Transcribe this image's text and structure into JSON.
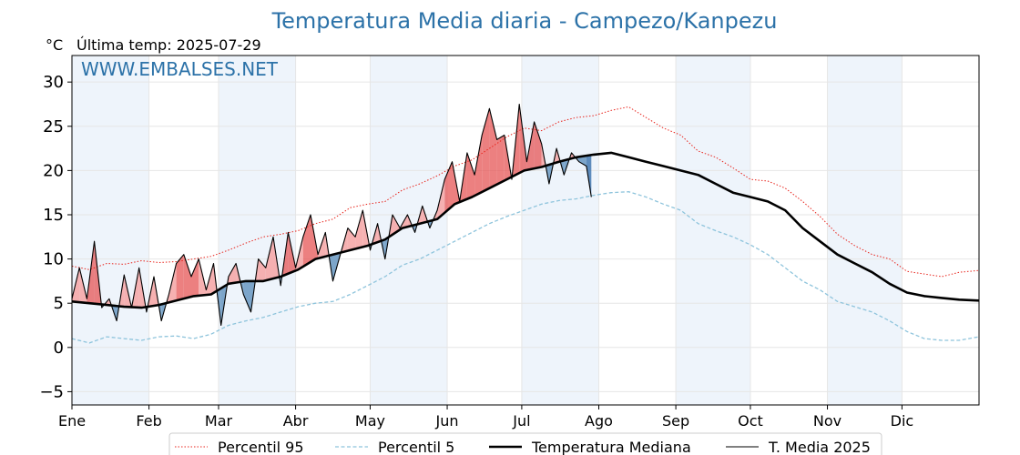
{
  "chart_data": {
    "type": "line",
    "title": "Temperatura Media diaria - Campezo/Kanpezu",
    "unit_label": "°C",
    "last_temp_label": "Última temp: 2025-07-29",
    "watermark": "WWW.EMBALSES.NET",
    "ylim": [
      -6.5,
      33
    ],
    "yticks": [
      -5,
      0,
      5,
      10,
      15,
      20,
      25,
      30
    ],
    "xlim": [
      1,
      366
    ],
    "months": [
      {
        "label": "Ene",
        "day": 1
      },
      {
        "label": "Feb",
        "day": 32
      },
      {
        "label": "Mar",
        "day": 60
      },
      {
        "label": "Abr",
        "day": 91
      },
      {
        "label": "May",
        "day": 121
      },
      {
        "label": "Jun",
        "day": 152
      },
      {
        "label": "Jul",
        "day": 182
      },
      {
        "label": "Ago",
        "day": 213
      },
      {
        "label": "Sep",
        "day": 244
      },
      {
        "label": "Oct",
        "day": 274
      },
      {
        "label": "Nov",
        "day": 305
      },
      {
        "label": "Dic",
        "day": 335
      }
    ],
    "shaded_month_bands": [
      [
        1,
        32
      ],
      [
        60,
        91
      ],
      [
        121,
        152
      ],
      [
        182,
        213
      ],
      [
        244,
        274
      ],
      [
        305,
        335
      ]
    ],
    "grid": true,
    "legend_position": "bottom",
    "colors": {
      "p95": "#e8251d",
      "p5": "#8ec4dc",
      "median": "#000000",
      "current": "#000000",
      "above_fill": "#f5a8a8",
      "above_fill_strong": "#e65555",
      "below_fill": "#6f9cc4",
      "below_fill_strong": "#2e6aa8",
      "band": "#eef4fb",
      "title": "#2c72a8"
    },
    "series": [
      {
        "name": "Percentil 95",
        "style": "dotted-red",
        "x": [
          1,
          8,
          15,
          22,
          29,
          36,
          43,
          50,
          57,
          64,
          71,
          78,
          85,
          92,
          99,
          106,
          113,
          120,
          127,
          134,
          141,
          148,
          155,
          162,
          169,
          176,
          183,
          190,
          197,
          204,
          211,
          218,
          225,
          232,
          239,
          246,
          253,
          260,
          267,
          274,
          281,
          288,
          295,
          302,
          309,
          316,
          323,
          330,
          337,
          344,
          351,
          358,
          366
        ],
        "y": [
          9.2,
          8.8,
          9.5,
          9.4,
          9.8,
          9.6,
          9.7,
          10.0,
          10.3,
          11.0,
          11.8,
          12.5,
          12.8,
          13.2,
          14.0,
          14.5,
          15.8,
          16.2,
          16.5,
          17.8,
          18.5,
          19.4,
          20.5,
          21.2,
          22.5,
          23.8,
          24.8,
          24.5,
          25.5,
          26.0,
          26.2,
          26.8,
          27.2,
          26.0,
          24.8,
          24.0,
          22.2,
          21.5,
          20.3,
          19.0,
          18.8,
          18.0,
          16.5,
          14.8,
          12.8,
          11.5,
          10.5,
          10.0,
          8.6,
          8.3,
          8.0,
          8.5,
          8.7
        ]
      },
      {
        "name": "Percentil 5",
        "style": "dashed-lightblue",
        "x": [
          1,
          8,
          15,
          22,
          29,
          36,
          43,
          50,
          57,
          64,
          71,
          78,
          85,
          92,
          99,
          106,
          113,
          120,
          127,
          134,
          141,
          148,
          155,
          162,
          169,
          176,
          183,
          190,
          197,
          204,
          211,
          218,
          225,
          232,
          239,
          246,
          253,
          260,
          267,
          274,
          281,
          288,
          295,
          302,
          309,
          316,
          323,
          330,
          337,
          344,
          351,
          358,
          366
        ],
        "y": [
          1.0,
          0.5,
          1.2,
          1.0,
          0.8,
          1.2,
          1.3,
          1.0,
          1.5,
          2.5,
          3.0,
          3.4,
          4.0,
          4.6,
          5.0,
          5.2,
          6.0,
          7.0,
          8.0,
          9.3,
          10.0,
          11.0,
          12.0,
          13.0,
          14.0,
          14.8,
          15.5,
          16.2,
          16.6,
          16.8,
          17.2,
          17.5,
          17.6,
          17.0,
          16.2,
          15.5,
          14.0,
          13.2,
          12.5,
          11.6,
          10.5,
          9.0,
          7.5,
          6.5,
          5.2,
          4.6,
          4.0,
          3.0,
          1.8,
          1.0,
          0.8,
          0.8,
          1.2
        ]
      },
      {
        "name": "Temperatura Mediana",
        "style": "thick-black",
        "x": [
          1,
          8,
          15,
          22,
          29,
          36,
          43,
          50,
          57,
          64,
          71,
          78,
          85,
          92,
          99,
          106,
          113,
          120,
          127,
          134,
          141,
          148,
          155,
          162,
          169,
          176,
          183,
          190,
          197,
          204,
          211,
          218,
          225,
          232,
          239,
          246,
          253,
          260,
          267,
          274,
          281,
          288,
          295,
          302,
          309,
          316,
          323,
          330,
          337,
          344,
          351,
          358,
          366
        ],
        "y": [
          5.2,
          5.0,
          4.8,
          4.6,
          4.5,
          4.8,
          5.3,
          5.8,
          6.0,
          7.2,
          7.5,
          7.5,
          8.0,
          8.8,
          10.0,
          10.5,
          11.0,
          11.5,
          12.2,
          13.5,
          14.0,
          14.5,
          16.2,
          17.0,
          18.0,
          19.0,
          20.0,
          20.4,
          21.0,
          21.5,
          21.8,
          22.0,
          21.5,
          21.0,
          20.5,
          20.0,
          19.5,
          18.5,
          17.5,
          17.0,
          16.5,
          15.5,
          13.5,
          12.0,
          10.5,
          9.5,
          8.5,
          7.2,
          6.2,
          5.8,
          5.6,
          5.4,
          5.3
        ]
      },
      {
        "name": "T. Media 2025",
        "style": "thin-black",
        "x": [
          1,
          4,
          7,
          10,
          13,
          16,
          19,
          22,
          25,
          28,
          31,
          34,
          37,
          40,
          43,
          46,
          49,
          52,
          55,
          58,
          61,
          64,
          67,
          70,
          73,
          76,
          79,
          82,
          85,
          88,
          91,
          94,
          97,
          100,
          103,
          106,
          109,
          112,
          115,
          118,
          121,
          124,
          127,
          130,
          133,
          136,
          139,
          142,
          145,
          148,
          151,
          154,
          157,
          160,
          163,
          166,
          169,
          172,
          175,
          178,
          181,
          184,
          187,
          190,
          193,
          196,
          199,
          202,
          205,
          208,
          210
        ],
        "y": [
          5.5,
          9.0,
          5.5,
          12.0,
          4.5,
          5.5,
          3.0,
          8.2,
          4.5,
          9.0,
          4.0,
          8.0,
          3.0,
          6.0,
          9.5,
          10.5,
          8.0,
          10.0,
          6.5,
          9.5,
          2.5,
          8.0,
          9.5,
          6.0,
          4.0,
          10.0,
          9.0,
          12.5,
          7.0,
          13.0,
          9.0,
          12.5,
          15.0,
          10.5,
          13.0,
          7.5,
          10.5,
          13.5,
          12.5,
          15.5,
          11.0,
          14.0,
          10.0,
          15.0,
          13.5,
          15.0,
          13.0,
          16.0,
          13.5,
          15.5,
          19.0,
          21.0,
          16.5,
          22.0,
          19.5,
          24.0,
          27.0,
          23.5,
          24.0,
          19.0,
          27.5,
          21.0,
          25.5,
          23.0,
          18.5,
          22.5,
          19.5,
          22.0,
          21.0,
          20.5,
          17.0
        ]
      }
    ],
    "legend": [
      {
        "label": "Percentil 95"
      },
      {
        "label": "Percentil 5"
      },
      {
        "label": "Temperatura Mediana"
      },
      {
        "label": "T. Media 2025"
      }
    ]
  }
}
